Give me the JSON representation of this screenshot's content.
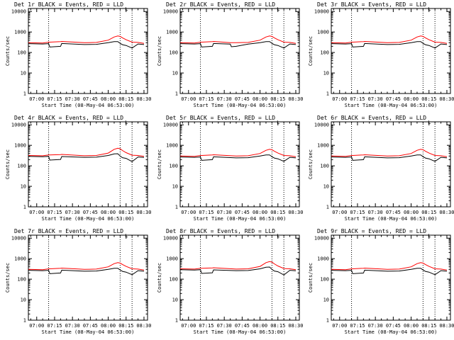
{
  "figure": {
    "background": "#ffffff",
    "rows": 3,
    "cols": 3
  },
  "styles": {
    "events_color": "#000000",
    "lld_color": "#ff0000",
    "axis_color": "#000000",
    "marker_style": "dotted vertical lines"
  },
  "chart_data": [
    {
      "type": "line",
      "title": "Det 1r BLACK = Events, RED = LLD",
      "xlabel": "Start Time (08-May-04 06:53:00)",
      "ylabel": "Counts/sec",
      "y_scale": "log",
      "xlim": [
        "06:53",
        "08:33"
      ],
      "ylim": [
        1,
        14000
      ],
      "x_tick_labels": [
        "07:00",
        "07:15",
        "07:30",
        "07:45",
        "08:00",
        "08:15",
        "08:30"
      ],
      "y_tick_labels": [
        "1",
        "10",
        "100",
        "1000",
        "10000"
      ],
      "vertical_markers": [
        "07:10",
        "08:10",
        "08:20"
      ],
      "top_marker_label": "L",
      "x": [
        "06:53",
        "07:05",
        "07:10",
        "07:11",
        "07:20",
        "07:21",
        "07:40",
        "07:50",
        "08:00",
        "08:05",
        "08:08",
        "08:10",
        "08:12",
        "08:15",
        "08:20",
        "08:25",
        "08:30"
      ],
      "series": [
        {
          "name": "Events",
          "color": "#000000",
          "values": [
            270,
            260,
            270,
            185,
            200,
            275,
            245,
            250,
            300,
            340,
            340,
            280,
            240,
            220,
            165,
            260,
            245
          ]
        },
        {
          "name": "LLD",
          "color": "#ff0000",
          "values": [
            300,
            290,
            320,
            320,
            340,
            345,
            300,
            310,
            400,
            570,
            640,
            610,
            520,
            420,
            320,
            310,
            280
          ]
        }
      ]
    },
    {
      "type": "line",
      "title": "Det 2r BLACK = Events, RED = LLD",
      "xlabel": "Start Time (08-May-04 06:53:00)",
      "ylabel": "Counts/sec",
      "y_scale": "log",
      "xlim": [
        "06:53",
        "08:33"
      ],
      "ylim": [
        1,
        14000
      ],
      "x_tick_labels": [
        "07:00",
        "07:15",
        "07:30",
        "07:45",
        "08:00",
        "08:15",
        "08:30"
      ],
      "y_tick_labels": [
        "1",
        "10",
        "100",
        "1000",
        "10000"
      ],
      "vertical_markers": [
        "07:10",
        "08:10",
        "08:20"
      ],
      "top_marker_label": "L",
      "x": [
        "06:53",
        "07:05",
        "07:10",
        "07:11",
        "07:20",
        "07:21",
        "07:35",
        "07:36",
        "07:40",
        "07:50",
        "08:00",
        "08:05",
        "08:08",
        "08:10",
        "08:12",
        "08:15",
        "08:20",
        "08:25",
        "08:30"
      ],
      "series": [
        {
          "name": "Events",
          "color": "#000000",
          "values": [
            270,
            260,
            270,
            185,
            200,
            275,
            255,
            190,
            200,
            255,
            300,
            340,
            340,
            280,
            240,
            220,
            165,
            260,
            245
          ]
        },
        {
          "name": "LLD",
          "color": "#ff0000",
          "values": [
            300,
            290,
            320,
            320,
            340,
            345,
            300,
            300,
            300,
            310,
            400,
            570,
            640,
            610,
            520,
            420,
            320,
            310,
            280
          ]
        }
      ]
    },
    {
      "type": "line",
      "title": "Det 3r BLACK = Events, RED = LLD",
      "xlabel": "Start Time (08-May-04 06:53:00)",
      "ylabel": "Counts/sec",
      "y_scale": "log",
      "xlim": [
        "06:53",
        "08:33"
      ],
      "ylim": [
        1,
        14000
      ],
      "x_tick_labels": [
        "07:00",
        "07:15",
        "07:30",
        "07:45",
        "08:00",
        "08:15",
        "08:30"
      ],
      "y_tick_labels": [
        "1",
        "10",
        "100",
        "1000",
        "10000"
      ],
      "vertical_markers": [
        "07:10",
        "08:10",
        "08:20"
      ],
      "top_marker_label": "L",
      "x": [
        "06:53",
        "07:05",
        "07:10",
        "07:11",
        "07:20",
        "07:21",
        "07:40",
        "07:50",
        "08:00",
        "08:05",
        "08:08",
        "08:10",
        "08:12",
        "08:15",
        "08:20",
        "08:25",
        "08:30"
      ],
      "series": [
        {
          "name": "Events",
          "color": "#000000",
          "values": [
            270,
            260,
            270,
            185,
            200,
            275,
            245,
            250,
            300,
            340,
            340,
            280,
            240,
            220,
            165,
            260,
            245
          ]
        },
        {
          "name": "LLD",
          "color": "#ff0000",
          "values": [
            300,
            290,
            320,
            320,
            340,
            345,
            300,
            310,
            400,
            570,
            640,
            610,
            520,
            420,
            320,
            310,
            280
          ]
        }
      ]
    },
    {
      "type": "line",
      "title": "Det 4r BLACK = Events, RED = LLD",
      "xlabel": "Start Time (08-May-04 06:53:00)",
      "ylabel": "Counts/sec",
      "y_scale": "log",
      "xlim": [
        "06:53",
        "08:33"
      ],
      "ylim": [
        1,
        14000
      ],
      "x_tick_labels": [
        "07:00",
        "07:15",
        "07:30",
        "07:45",
        "08:00",
        "08:15",
        "08:30"
      ],
      "y_tick_labels": [
        "1",
        "10",
        "100",
        "1000",
        "10000"
      ],
      "vertical_markers": [
        "07:10",
        "08:10",
        "08:20"
      ],
      "top_marker_label": "L",
      "x": [
        "06:53",
        "07:05",
        "07:10",
        "07:11",
        "07:20",
        "07:21",
        "07:40",
        "07:50",
        "08:00",
        "08:05",
        "08:08",
        "08:10",
        "08:12",
        "08:15",
        "08:20",
        "08:25",
        "08:30"
      ],
      "series": [
        {
          "name": "Events",
          "color": "#000000",
          "values": [
            290,
            280,
            290,
            190,
            205,
            285,
            260,
            265,
            320,
            380,
            390,
            300,
            250,
            230,
            160,
            270,
            255
          ]
        },
        {
          "name": "LLD",
          "color": "#ff0000",
          "values": [
            320,
            310,
            340,
            340,
            355,
            360,
            310,
            320,
            420,
            640,
            720,
            680,
            560,
            440,
            330,
            320,
            290
          ]
        }
      ]
    },
    {
      "type": "line",
      "title": "Det 5r BLACK = Events, RED = LLD",
      "xlabel": "Start Time (08-May-04 06:53:00)",
      "ylabel": "Counts/sec",
      "y_scale": "log",
      "xlim": [
        "06:53",
        "08:33"
      ],
      "ylim": [
        1,
        14000
      ],
      "x_tick_labels": [
        "07:00",
        "07:15",
        "07:30",
        "07:45",
        "08:00",
        "08:15",
        "08:30"
      ],
      "y_tick_labels": [
        "1",
        "10",
        "100",
        "1000",
        "10000"
      ],
      "vertical_markers": [
        "07:10",
        "08:10",
        "08:20"
      ],
      "top_marker_label": "L",
      "x": [
        "06:53",
        "07:05",
        "07:10",
        "07:11",
        "07:20",
        "07:21",
        "07:40",
        "07:50",
        "08:00",
        "08:05",
        "08:08",
        "08:10",
        "08:12",
        "08:15",
        "08:20",
        "08:25",
        "08:30"
      ],
      "series": [
        {
          "name": "Events",
          "color": "#000000",
          "values": [
            270,
            260,
            270,
            185,
            200,
            275,
            245,
            250,
            300,
            340,
            340,
            280,
            240,
            220,
            165,
            260,
            245
          ]
        },
        {
          "name": "LLD",
          "color": "#ff0000",
          "values": [
            300,
            290,
            320,
            320,
            340,
            345,
            300,
            310,
            400,
            570,
            640,
            610,
            520,
            420,
            320,
            310,
            280
          ]
        }
      ]
    },
    {
      "type": "line",
      "title": "Det 6r BLACK = Events, RED = LLD",
      "xlabel": "Start Time (08-May-04 06:53:00)",
      "ylabel": "Counts/sec",
      "y_scale": "log",
      "xlim": [
        "06:53",
        "08:33"
      ],
      "ylim": [
        1,
        14000
      ],
      "x_tick_labels": [
        "07:00",
        "07:15",
        "07:30",
        "07:45",
        "08:00",
        "08:15",
        "08:30"
      ],
      "y_tick_labels": [
        "1",
        "10",
        "100",
        "1000",
        "10000"
      ],
      "vertical_markers": [
        "07:10",
        "08:10",
        "08:20"
      ],
      "top_marker_label": "L",
      "x": [
        "06:53",
        "07:05",
        "07:10",
        "07:11",
        "07:20",
        "07:21",
        "07:40",
        "07:50",
        "08:00",
        "08:05",
        "08:08",
        "08:10",
        "08:12",
        "08:15",
        "08:20",
        "08:25",
        "08:30"
      ],
      "series": [
        {
          "name": "Events",
          "color": "#000000",
          "values": [
            270,
            260,
            270,
            185,
            200,
            275,
            245,
            250,
            300,
            340,
            340,
            280,
            240,
            220,
            165,
            260,
            245
          ]
        },
        {
          "name": "LLD",
          "color": "#ff0000",
          "values": [
            300,
            290,
            320,
            320,
            340,
            345,
            300,
            310,
            400,
            570,
            640,
            610,
            520,
            420,
            320,
            310,
            280
          ]
        }
      ]
    },
    {
      "type": "line",
      "title": "Det 7r BLACK = Events, RED = LLD",
      "xlabel": "Start Time (08-May-04 06:53:00)",
      "ylabel": "Counts/sec",
      "y_scale": "log",
      "xlim": [
        "06:53",
        "08:33"
      ],
      "ylim": [
        1,
        14000
      ],
      "x_tick_labels": [
        "07:00",
        "07:15",
        "07:30",
        "07:45",
        "08:00",
        "08:15",
        "08:30"
      ],
      "y_tick_labels": [
        "1",
        "10",
        "100",
        "1000",
        "10000"
      ],
      "vertical_markers": [
        "07:10",
        "08:10",
        "08:20"
      ],
      "top_marker_label": "L",
      "x": [
        "06:53",
        "07:05",
        "07:10",
        "07:11",
        "07:20",
        "07:21",
        "07:40",
        "07:50",
        "08:00",
        "08:05",
        "08:08",
        "08:10",
        "08:12",
        "08:15",
        "08:20",
        "08:25",
        "08:30"
      ],
      "series": [
        {
          "name": "Events",
          "color": "#000000",
          "values": [
            270,
            260,
            270,
            185,
            200,
            275,
            245,
            250,
            300,
            340,
            340,
            280,
            240,
            220,
            165,
            260,
            245
          ]
        },
        {
          "name": "LLD",
          "color": "#ff0000",
          "values": [
            300,
            290,
            320,
            320,
            340,
            345,
            300,
            310,
            400,
            570,
            640,
            610,
            520,
            420,
            320,
            310,
            280
          ]
        }
      ]
    },
    {
      "type": "line",
      "title": "Det 8r BLACK = Events, RED = LLD",
      "xlabel": "Start Time (08-May-04 06:53:00)",
      "ylabel": "Counts/sec",
      "y_scale": "log",
      "xlim": [
        "06:53",
        "08:33"
      ],
      "ylim": [
        1,
        14000
      ],
      "x_tick_labels": [
        "07:00",
        "07:15",
        "07:30",
        "07:45",
        "08:00",
        "08:15",
        "08:30"
      ],
      "y_tick_labels": [
        "1",
        "10",
        "100",
        "1000",
        "10000"
      ],
      "vertical_markers": [
        "07:10",
        "08:10",
        "08:20"
      ],
      "top_marker_label": "L",
      "x": [
        "06:53",
        "07:05",
        "07:10",
        "07:11",
        "07:20",
        "07:21",
        "07:40",
        "07:50",
        "08:00",
        "08:05",
        "08:08",
        "08:10",
        "08:12",
        "08:15",
        "08:20",
        "08:25",
        "08:30"
      ],
      "series": [
        {
          "name": "Events",
          "color": "#000000",
          "values": [
            290,
            280,
            290,
            190,
            205,
            285,
            260,
            265,
            320,
            380,
            390,
            300,
            250,
            230,
            160,
            270,
            255
          ]
        },
        {
          "name": "LLD",
          "color": "#ff0000",
          "values": [
            320,
            310,
            340,
            340,
            355,
            360,
            310,
            320,
            420,
            640,
            720,
            680,
            560,
            440,
            330,
            320,
            290
          ]
        }
      ]
    },
    {
      "type": "line",
      "title": "Det 9r BLACK = Events, RED = LLD",
      "xlabel": "Start Time (08-May-04 06:53:00)",
      "ylabel": "Counts/sec",
      "y_scale": "log",
      "xlim": [
        "06:53",
        "08:33"
      ],
      "ylim": [
        1,
        14000
      ],
      "x_tick_labels": [
        "07:00",
        "07:15",
        "07:30",
        "07:45",
        "08:00",
        "08:15",
        "08:30"
      ],
      "y_tick_labels": [
        "1",
        "10",
        "100",
        "1000",
        "10000"
      ],
      "vertical_markers": [
        "07:10",
        "08:10",
        "08:20"
      ],
      "top_marker_label": "L",
      "x": [
        "06:53",
        "07:05",
        "07:10",
        "07:11",
        "07:20",
        "07:21",
        "07:40",
        "07:50",
        "08:00",
        "08:05",
        "08:08",
        "08:10",
        "08:12",
        "08:15",
        "08:20",
        "08:25",
        "08:30"
      ],
      "series": [
        {
          "name": "Events",
          "color": "#000000",
          "values": [
            270,
            260,
            270,
            185,
            200,
            275,
            245,
            250,
            300,
            340,
            340,
            280,
            240,
            220,
            165,
            260,
            245
          ]
        },
        {
          "name": "LLD",
          "color": "#ff0000",
          "values": [
            300,
            290,
            320,
            320,
            340,
            345,
            300,
            310,
            400,
            570,
            640,
            610,
            520,
            420,
            320,
            310,
            280
          ]
        }
      ]
    }
  ]
}
